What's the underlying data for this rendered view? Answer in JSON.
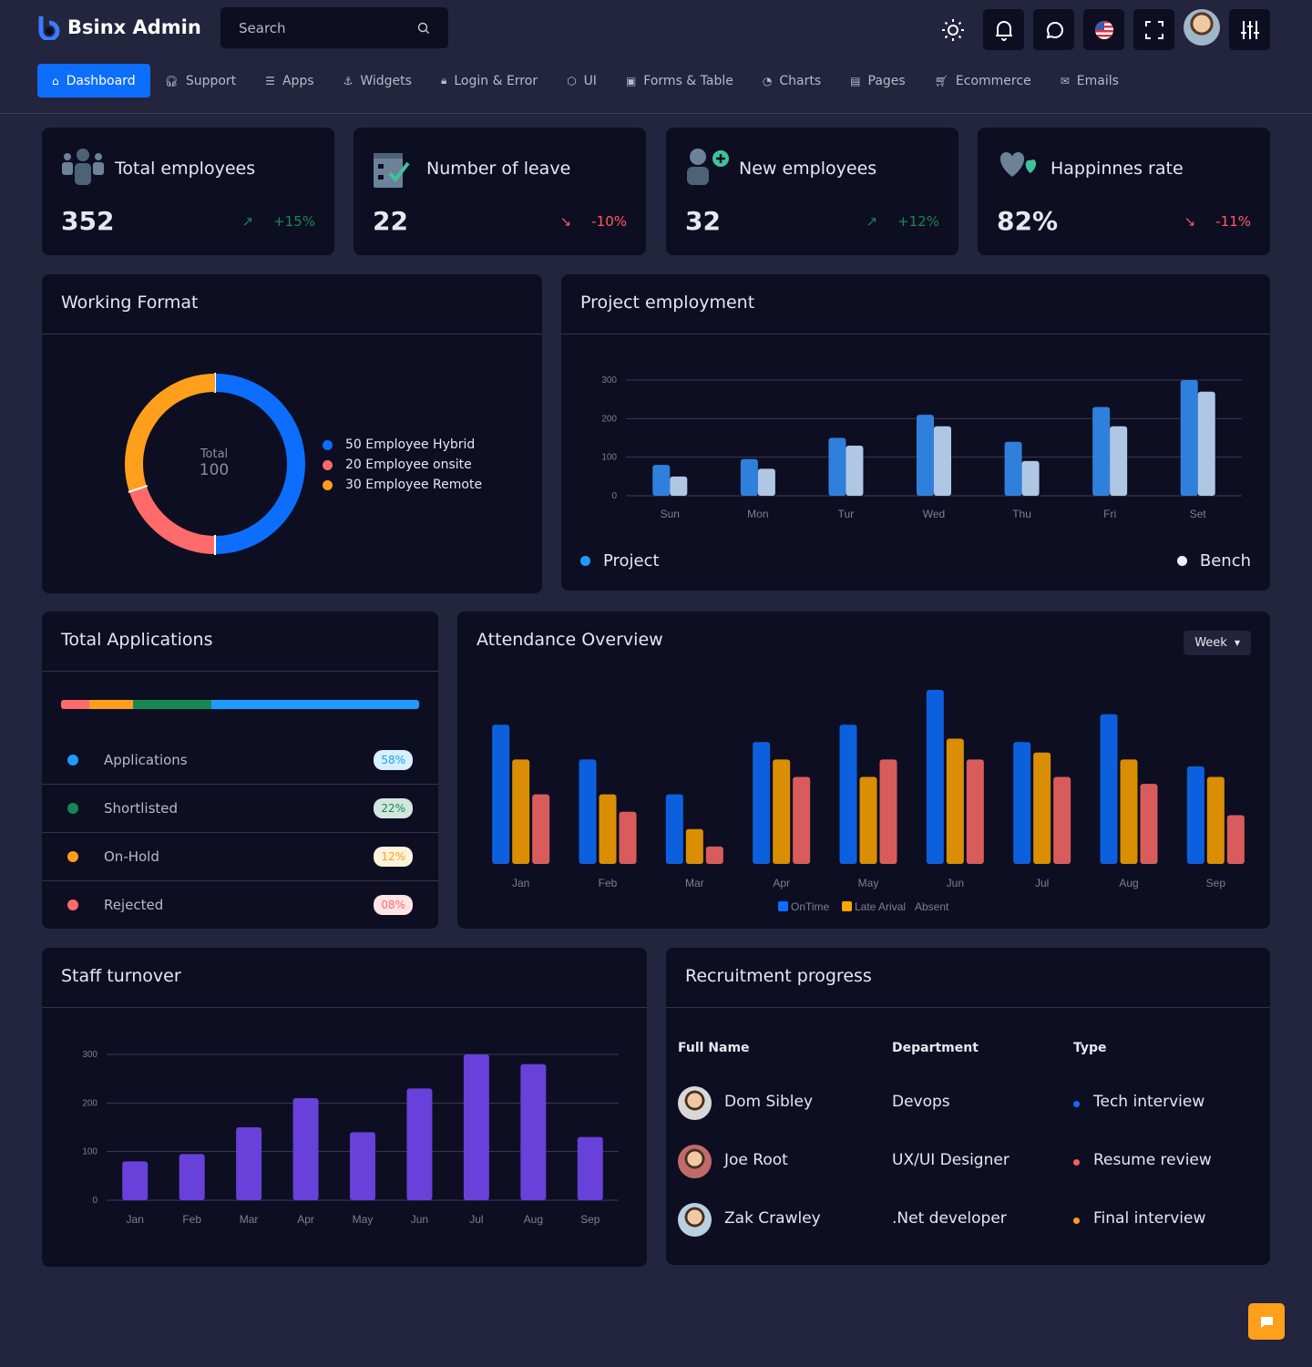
{
  "header": {
    "brand": "Bsinx Admin",
    "search_placeholder": "Search",
    "icons": [
      "sun-icon",
      "bell-icon",
      "chat-icon",
      "us-flag-icon",
      "fullscreen-icon",
      "avatar",
      "sliders-icon"
    ]
  },
  "nav": [
    {
      "label": "Dashboard",
      "icon": "home-icon",
      "active": true
    },
    {
      "label": "Support",
      "icon": "headphones-icon"
    },
    {
      "label": "Apps",
      "icon": "database-icon"
    },
    {
      "label": "Widgets",
      "icon": "anchor-icon"
    },
    {
      "label": "Login & Error",
      "icon": "lock-icon"
    },
    {
      "label": "UI",
      "icon": "box-icon"
    },
    {
      "label": "Forms & Table",
      "icon": "form-icon"
    },
    {
      "label": "Charts",
      "icon": "pie-icon"
    },
    {
      "label": "Pages",
      "icon": "file-icon"
    },
    {
      "label": "Ecommerce",
      "icon": "cart-icon"
    },
    {
      "label": "Emails",
      "icon": "mail-icon"
    }
  ],
  "stats": [
    {
      "title": "Total employees",
      "value": "352",
      "change": "+15%",
      "trend": "up",
      "icon": "users-icon"
    },
    {
      "title": "Number of leave",
      "value": "22",
      "change": "-10%",
      "trend": "down",
      "icon": "calendar-check-icon"
    },
    {
      "title": "New employees",
      "value": "32",
      "change": "+12%",
      "trend": "up",
      "icon": "user-plus-icon"
    },
    {
      "title": "Happinnes rate",
      "value": "82%",
      "change": "-11%",
      "trend": "down",
      "icon": "hearts-icon"
    }
  ],
  "colors": {
    "up": "#198754",
    "down": "#ff5c5c",
    "accent": "#0d6efd"
  },
  "working_format": {
    "title": "Working Format",
    "center_label": "Total",
    "center_value": "100",
    "chart_data": {
      "type": "pie",
      "slices": [
        {
          "label": "50 Employee Hybrid",
          "value": 50,
          "color": "#0d6efd"
        },
        {
          "label": "20 Employee onsite",
          "value": 20,
          "color": "#ff6b6b"
        },
        {
          "label": "30 Employee Remote",
          "value": 30,
          "color": "#ff9f1c"
        }
      ]
    }
  },
  "project_employment": {
    "title": "Project employment",
    "legend": [
      {
        "label": "Project",
        "color": "#1e9bff"
      },
      {
        "label": "Bench",
        "color": "#e6f2ff"
      }
    ],
    "chart_data": {
      "type": "bar",
      "categories": [
        "Sun",
        "Mon",
        "Tur",
        "Wed",
        "Thu",
        "Fri",
        "Set"
      ],
      "ylim": [
        0,
        300
      ],
      "yticks": [
        "0",
        "100",
        "200",
        "300"
      ],
      "grid": true,
      "series": [
        {
          "name": "Project",
          "values": [
            80,
            95,
            150,
            210,
            140,
            230,
            300
          ],
          "color": "#2f80dd"
        },
        {
          "name": "Bench",
          "values": [
            50,
            70,
            130,
            180,
            90,
            180,
            270
          ],
          "color": "#b0c7e3"
        }
      ]
    }
  },
  "total_applications": {
    "title": "Total Applications",
    "items": [
      {
        "label": "Applications",
        "percent": "58%",
        "value": 58,
        "color": "#1e9bff",
        "bg": "#d6f0ff"
      },
      {
        "label": "Shortlisted",
        "percent": "22%",
        "value": 22,
        "color": "#198754",
        "bg": "#d1e7dd"
      },
      {
        "label": "On-Hold",
        "percent": "12%",
        "value": 12,
        "color": "#ff9f1c",
        "bg": "#fff3dc"
      },
      {
        "label": "Rejected",
        "percent": "08%",
        "value": 8,
        "color": "#ff6b6b",
        "bg": "#ffe5e5"
      }
    ]
  },
  "attendance": {
    "title": "Attendance Overview",
    "dropdown": "Week",
    "chart_data": {
      "type": "bar",
      "categories": [
        "Jan",
        "Feb",
        "Mar",
        "Apr",
        "May",
        "Jun",
        "Jul",
        "Aug",
        "Sep"
      ],
      "ylim": [
        0,
        50
      ],
      "legend_placement": "bottom",
      "series": [
        {
          "name": "OnTime",
          "values": [
            40,
            30,
            20,
            35,
            40,
            50,
            35,
            43,
            28
          ],
          "color": "#0d60dd"
        },
        {
          "name": "Late Arival",
          "values": [
            30,
            20,
            10,
            30,
            25,
            36,
            32,
            30,
            25
          ],
          "color": "#d98e04"
        },
        {
          "name": "Absent",
          "values": [
            20,
            15,
            5,
            25,
            30,
            30,
            25,
            23,
            14
          ],
          "color": "#d95c5c"
        }
      ]
    }
  },
  "staff_turnover": {
    "title": "Staff turnover",
    "chart_data": {
      "type": "bar",
      "categories": [
        "Jan",
        "Feb",
        "Mar",
        "Apr",
        "May",
        "Jun",
        "Jul",
        "Aug",
        "Sep"
      ],
      "ylim": [
        0,
        300
      ],
      "yticks": [
        "0",
        "100",
        "200",
        "300"
      ],
      "grid": true,
      "series": [
        {
          "values": [
            80,
            95,
            150,
            210,
            140,
            230,
            300,
            280,
            130
          ],
          "color": "#6741d9"
        }
      ]
    }
  },
  "recruitment": {
    "title": "Recruitment progress",
    "columns": [
      "Full Name",
      "Department",
      "Type"
    ],
    "rows": [
      {
        "name": "Dom Sibley",
        "department": "Devops",
        "type": "Tech interview",
        "dot": "#0d6efd"
      },
      {
        "name": "Joe Root",
        "department": "UX/UI Designer",
        "type": "Resume review",
        "dot": "#ff5c5c"
      },
      {
        "name": "Zak Crawley",
        "department": ".Net developer",
        "type": "Final interview",
        "dot": "#ff9f1c"
      }
    ]
  }
}
